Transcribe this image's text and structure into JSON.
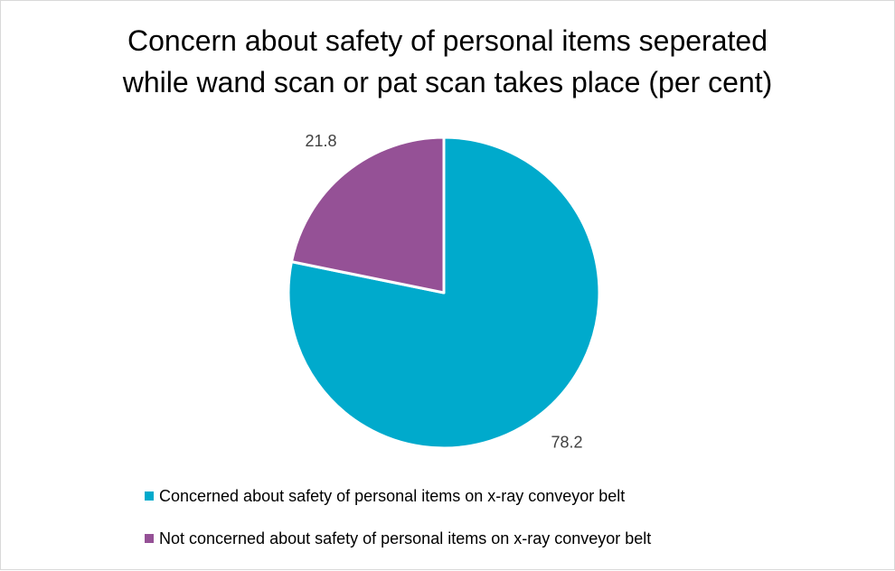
{
  "chart_data": {
    "type": "pie",
    "title_lines": [
      "Concern about safety of personal items seperated",
      "while wand scan or pat scan takes place (per cent)"
    ],
    "slices": [
      {
        "label": "Concerned about safety of personal items on x-ray conveyor belt",
        "value": 78.2,
        "value_label": "78.2",
        "color": "#00AACC"
      },
      {
        "label": "Not concerned about safety of personal items on x-ray conveyor belt",
        "value": 21.8,
        "value_label": "21.8",
        "color": "#955196"
      }
    ],
    "start_angle_deg": 0,
    "direction": "clockwise",
    "legend_position": "bottom-left",
    "data_label_color": "#404040"
  }
}
